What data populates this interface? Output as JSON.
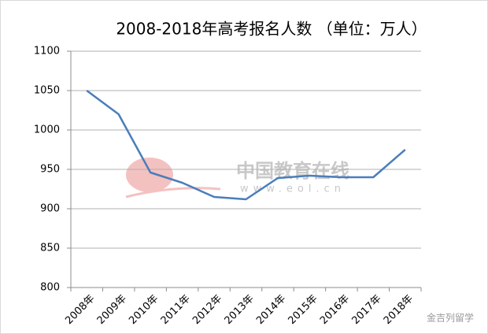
{
  "chart_data": {
    "type": "line",
    "title": "2008-2018年高考报名人数 （单位：万人）",
    "categories": [
      "2008年",
      "2009年",
      "2010年",
      "2011年",
      "2012年",
      "2013年",
      "2014年",
      "2015年",
      "2016年",
      "2017年",
      "2018年"
    ],
    "series": [
      {
        "name": "高考报名人数",
        "color": "#4a7ebb",
        "values": [
          1050,
          1020,
          946,
          933,
          915,
          912,
          939,
          942,
          940,
          940,
          975
        ]
      }
    ],
    "ylim": [
      800,
      1100
    ],
    "yticks": [
      800,
      850,
      900,
      950,
      1000,
      1050,
      1100
    ],
    "grid": true,
    "watermarks": [
      "中国教育在线",
      "www.eol.cn",
      "金吉列留学"
    ]
  }
}
